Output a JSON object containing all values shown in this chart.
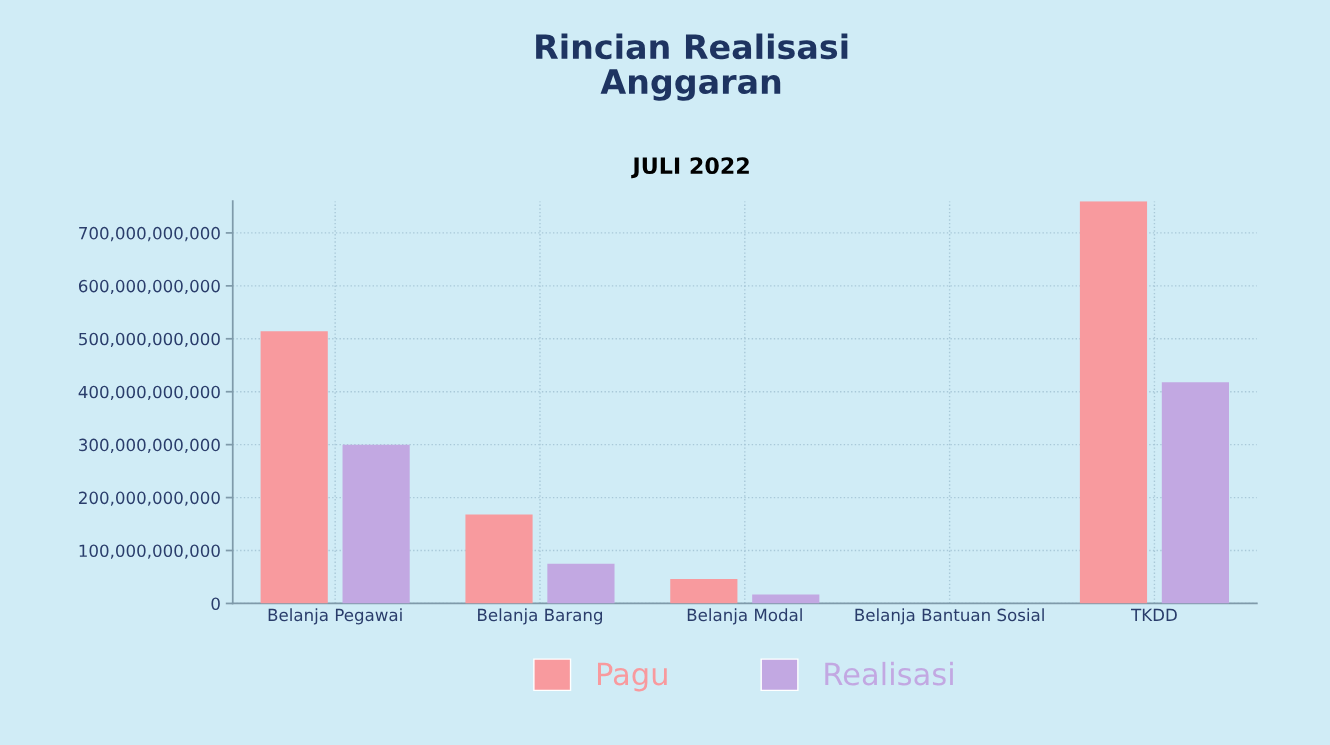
{
  "chart_data": {
    "type": "bar",
    "title": "Rincian Realisasi\nAnggaran",
    "subtitle": "JULI 2022",
    "categories": [
      "Belanja Pegawai",
      "Belanja Barang",
      "Belanja Modal",
      "Belanja Bantuan Sosial",
      "TKDD"
    ],
    "series": [
      {
        "name": "Pagu",
        "color": "#f89a9e",
        "values": [
          514000000000,
          168000000000,
          46000000000,
          0,
          760000000000
        ]
      },
      {
        "name": "Realisasi",
        "color": "#c2a8e2",
        "values": [
          300000000000,
          75000000000,
          17000000000,
          0,
          418000000000
        ]
      }
    ],
    "ylim": [
      0,
      760000000000
    ],
    "yticks": [
      0,
      {
        "value": 100000000000,
        "label": "100,000,000,000"
      },
      {
        "value": 200000000000,
        "label": "200,000,000,000"
      },
      {
        "value": 300000000000,
        "label": "300,000,000,000"
      },
      {
        "value": 400000000000,
        "label": "400,000,000,000"
      },
      {
        "value": 500000000000,
        "label": "500,000,000,000"
      },
      {
        "value": 600000000000,
        "label": "600,000,000,000"
      },
      {
        "value": 700000000000,
        "label": "700,000,000,000"
      }
    ],
    "grid": true,
    "legend": "bottom"
  }
}
